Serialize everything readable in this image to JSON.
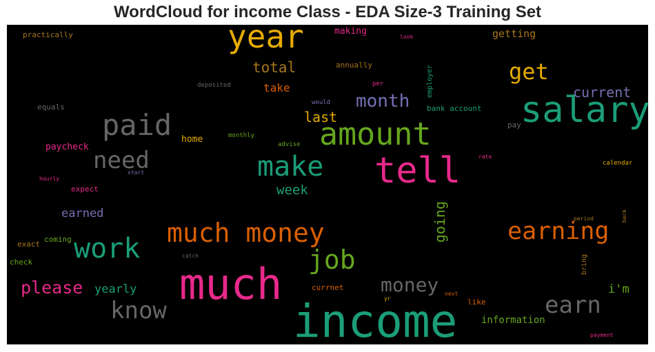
{
  "chart_data": {
    "type": "wordcloud",
    "title": "WordCloud for income Class - EDA Size-3 Training Set",
    "colors": {
      "teal": "#1b9e77",
      "orange": "#d95f02",
      "purple": "#7570b3",
      "pink": "#e7298a",
      "green": "#66a61e",
      "yellow": "#e6ab02",
      "brown": "#a6761d",
      "gray": "#666666"
    },
    "words": [
      {
        "text": "income",
        "color": "teal"
      },
      {
        "text": "much",
        "color": "pink"
      },
      {
        "text": "salary",
        "color": "teal"
      },
      {
        "text": "tell",
        "color": "pink"
      },
      {
        "text": "year",
        "color": "yellow"
      },
      {
        "text": "amount",
        "color": "green"
      },
      {
        "text": "much money",
        "color": "orange"
      },
      {
        "text": "make",
        "color": "teal"
      },
      {
        "text": "work",
        "color": "teal"
      },
      {
        "text": "paid",
        "color": "gray"
      },
      {
        "text": "earning",
        "color": "orange"
      },
      {
        "text": "job",
        "color": "green"
      },
      {
        "text": "need",
        "color": "gray"
      },
      {
        "text": "know",
        "color": "gray"
      },
      {
        "text": "earn",
        "color": "gray"
      },
      {
        "text": "get",
        "color": "yellow"
      },
      {
        "text": "money",
        "color": "gray"
      },
      {
        "text": "month",
        "color": "purple"
      },
      {
        "text": "please",
        "color": "pink"
      },
      {
        "text": "going",
        "color": "green"
      },
      {
        "text": "last",
        "color": "yellow"
      },
      {
        "text": "current",
        "color": "purple"
      },
      {
        "text": "total",
        "color": "brown"
      },
      {
        "text": "week",
        "color": "teal"
      },
      {
        "text": "yearly",
        "color": "teal"
      },
      {
        "text": "earned",
        "color": "purple"
      },
      {
        "text": "i'm",
        "color": "green"
      },
      {
        "text": "take",
        "color": "orange"
      },
      {
        "text": "information",
        "color": "green"
      },
      {
        "text": "getting",
        "color": "brown"
      },
      {
        "text": "making",
        "color": "pink"
      },
      {
        "text": "paycheck",
        "color": "pink"
      },
      {
        "text": "home",
        "color": "yellow"
      },
      {
        "text": "bank account",
        "color": "teal"
      },
      {
        "text": "annually",
        "color": "brown"
      },
      {
        "text": "practically",
        "color": "brown"
      },
      {
        "text": "equals",
        "color": "gray"
      },
      {
        "text": "expect",
        "color": "pink"
      },
      {
        "text": "exact",
        "color": "brown"
      },
      {
        "text": "coming",
        "color": "green"
      },
      {
        "text": "check",
        "color": "green"
      },
      {
        "text": "employer",
        "color": "teal"
      },
      {
        "text": "currnet",
        "color": "orange"
      },
      {
        "text": "like",
        "color": "orange"
      },
      {
        "text": "pay",
        "color": "gray"
      },
      {
        "text": "bring",
        "color": "brown"
      },
      {
        "text": "deposited",
        "color": "gray"
      },
      {
        "text": "monthly",
        "color": "green"
      },
      {
        "text": "advise",
        "color": "green"
      },
      {
        "text": "would",
        "color": "purple"
      },
      {
        "text": "per",
        "color": "pink"
      },
      {
        "text": "look",
        "color": "pink"
      },
      {
        "text": "rate",
        "color": "pink"
      },
      {
        "text": "hourly",
        "color": "pink"
      },
      {
        "text": "start",
        "color": "purple"
      },
      {
        "text": "calendar",
        "color": "yellow"
      },
      {
        "text": "period",
        "color": "brown"
      },
      {
        "text": "back",
        "color": "brown"
      },
      {
        "text": "catch",
        "color": "gray"
      },
      {
        "text": "next",
        "color": "orange"
      },
      {
        "text": "yr",
        "color": "yellow"
      },
      {
        "text": "payment",
        "color": "pink"
      }
    ]
  }
}
